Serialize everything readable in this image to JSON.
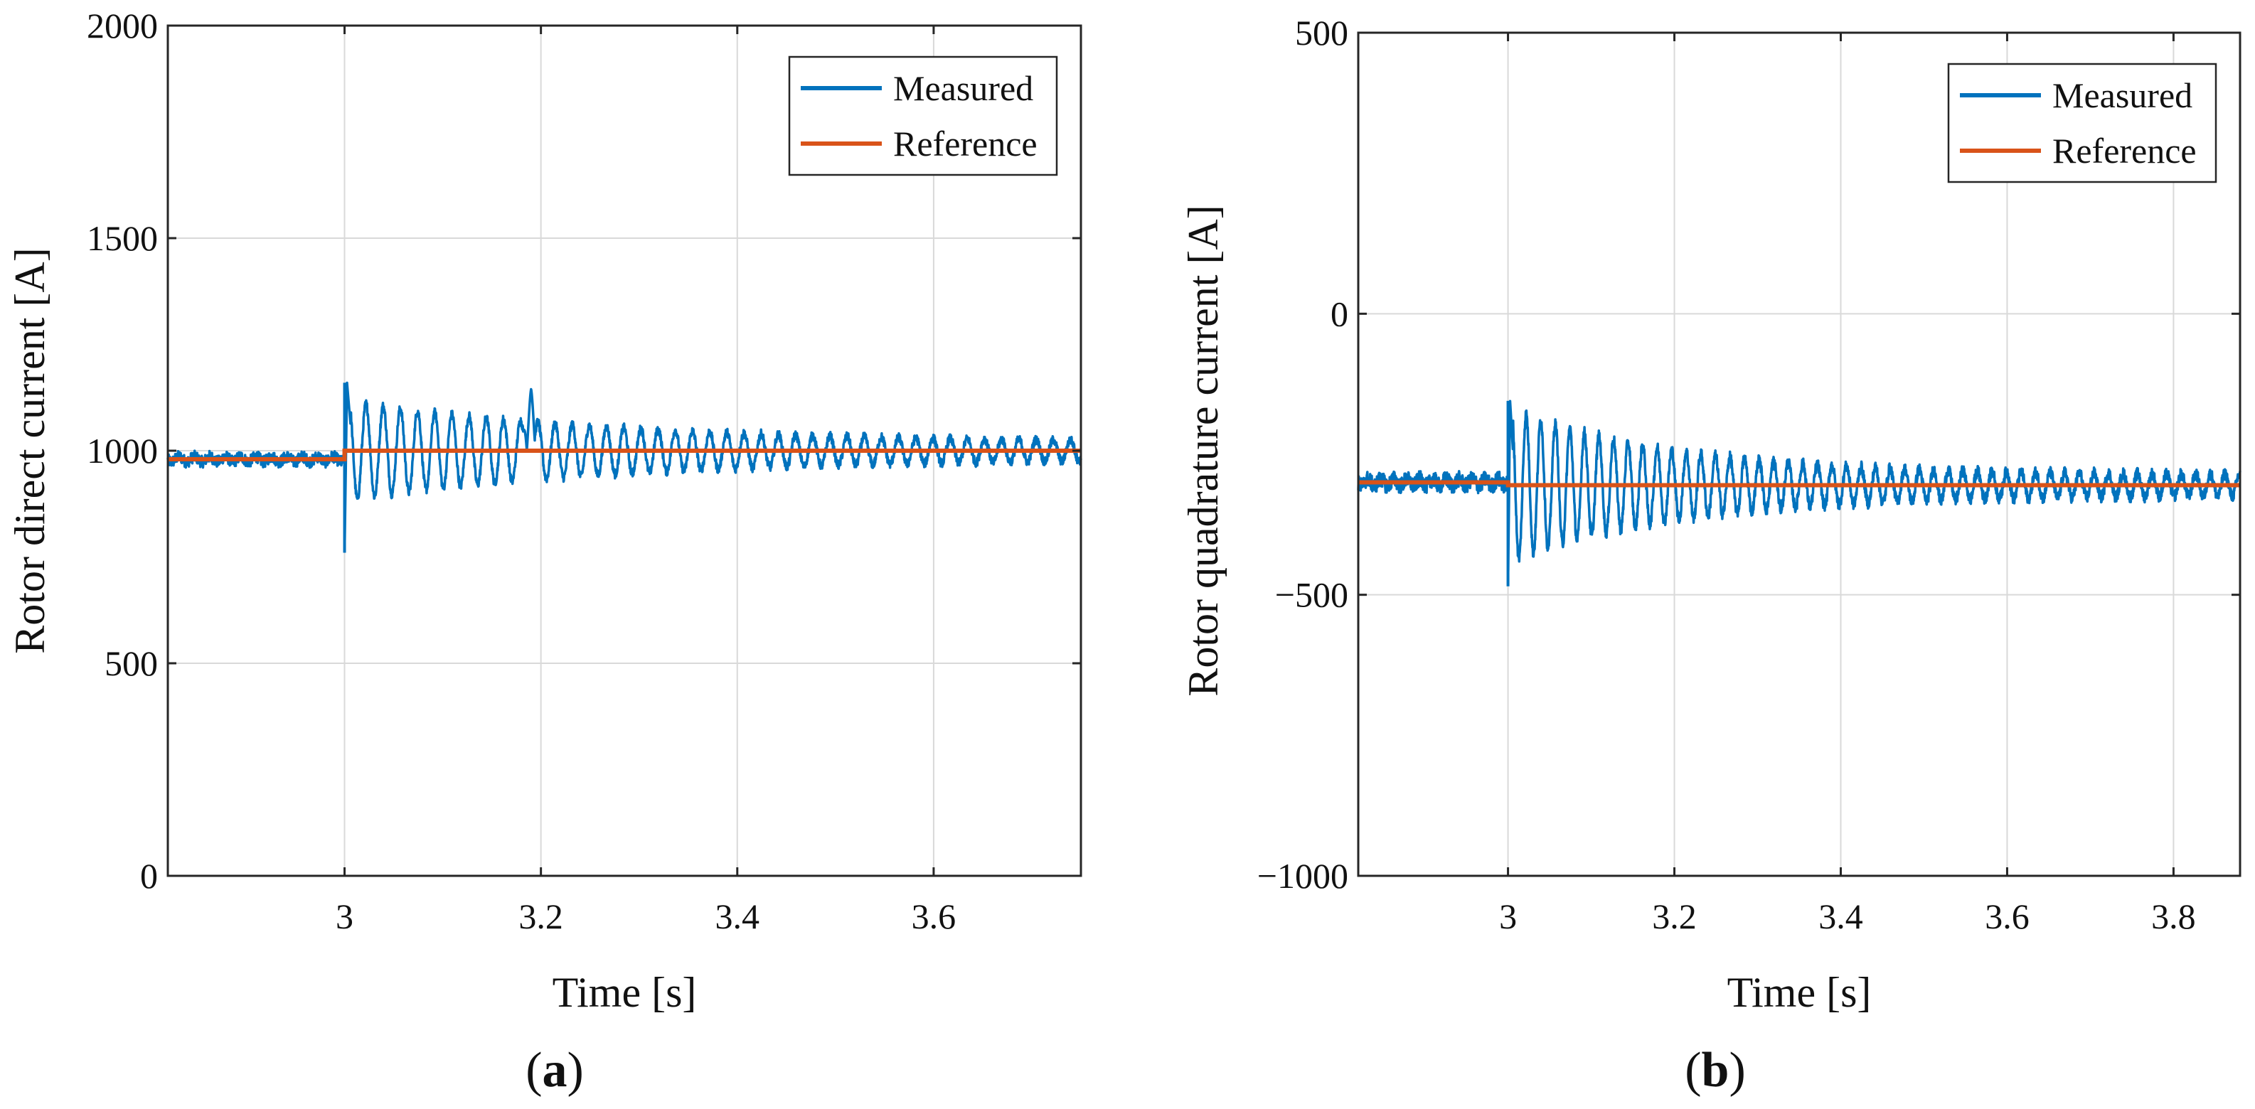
{
  "colors": {
    "measured": "#0072BD",
    "reference": "#D95319",
    "grid": "#d9d9d9",
    "axis": "#262626"
  },
  "chart_data": [
    {
      "id": "a",
      "type": "line",
      "panel_label": "(a)",
      "panel_label_parts": {
        "open": "(",
        "letter": "a",
        "close": ")"
      },
      "xlabel": "Time [s]",
      "ylabel": "Rotor direct current [A]",
      "xlim": [
        2.82,
        3.75
      ],
      "ylim": [
        0,
        2000
      ],
      "xticks": [
        3,
        3.2,
        3.4,
        3.6
      ],
      "xtick_labels": [
        "3",
        "3.2",
        "3.4",
        "3.6"
      ],
      "yticks": [
        0,
        500,
        1000,
        1500,
        2000
      ],
      "ytick_labels": [
        "0",
        "500",
        "1000",
        "1500",
        "2000"
      ],
      "grid": true,
      "legend_position": "top-right",
      "series": [
        {
          "name": "Measured",
          "kind": "measured",
          "baseline_before": 980,
          "baseline_after": 1000,
          "step_time": 3.0,
          "initial_peak": 1160,
          "initial_dip": 760,
          "osc_amplitude": 100,
          "osc_period": 0.0175,
          "decay_tau": 0.28,
          "residual_amplitude": 18,
          "secondary_burst": {
            "time": 3.19,
            "peak": 1145
          }
        },
        {
          "name": "Reference",
          "kind": "reference",
          "step_time": 3.0,
          "before": 980,
          "after": 1000
        }
      ]
    },
    {
      "id": "b",
      "type": "line",
      "panel_label": "(b)",
      "panel_label_parts": {
        "open": "(",
        "letter": "b",
        "close": ")"
      },
      "xlabel": "Time [s]",
      "ylabel": "Rotor quadrature current [A]",
      "xlim": [
        2.82,
        3.88
      ],
      "ylim": [
        -1000,
        500
      ],
      "xticks": [
        3,
        3.2,
        3.4,
        3.6,
        3.8
      ],
      "xtick_labels": [
        "3",
        "3.2",
        "3.4",
        "3.6",
        "3.8"
      ],
      "yticks": [
        -1000,
        -500,
        0,
        500
      ],
      "ytick_labels": [
        "−1000",
        "−500",
        "0",
        "500"
      ],
      "grid": true,
      "legend_position": "top-right",
      "series": [
        {
          "name": "Measured",
          "kind": "measured",
          "baseline_before": -300,
          "baseline_after": -305,
          "step_time": 3.0,
          "initial_peak": -155,
          "initial_dip": -485,
          "osc_amplitude": 120,
          "osc_period": 0.0175,
          "decay_tau": 0.2,
          "residual_amplitude": 18,
          "secondary_burst": null
        },
        {
          "name": "Reference",
          "kind": "reference",
          "step_time": 3.0,
          "before": -300,
          "after": -305
        }
      ]
    }
  ]
}
